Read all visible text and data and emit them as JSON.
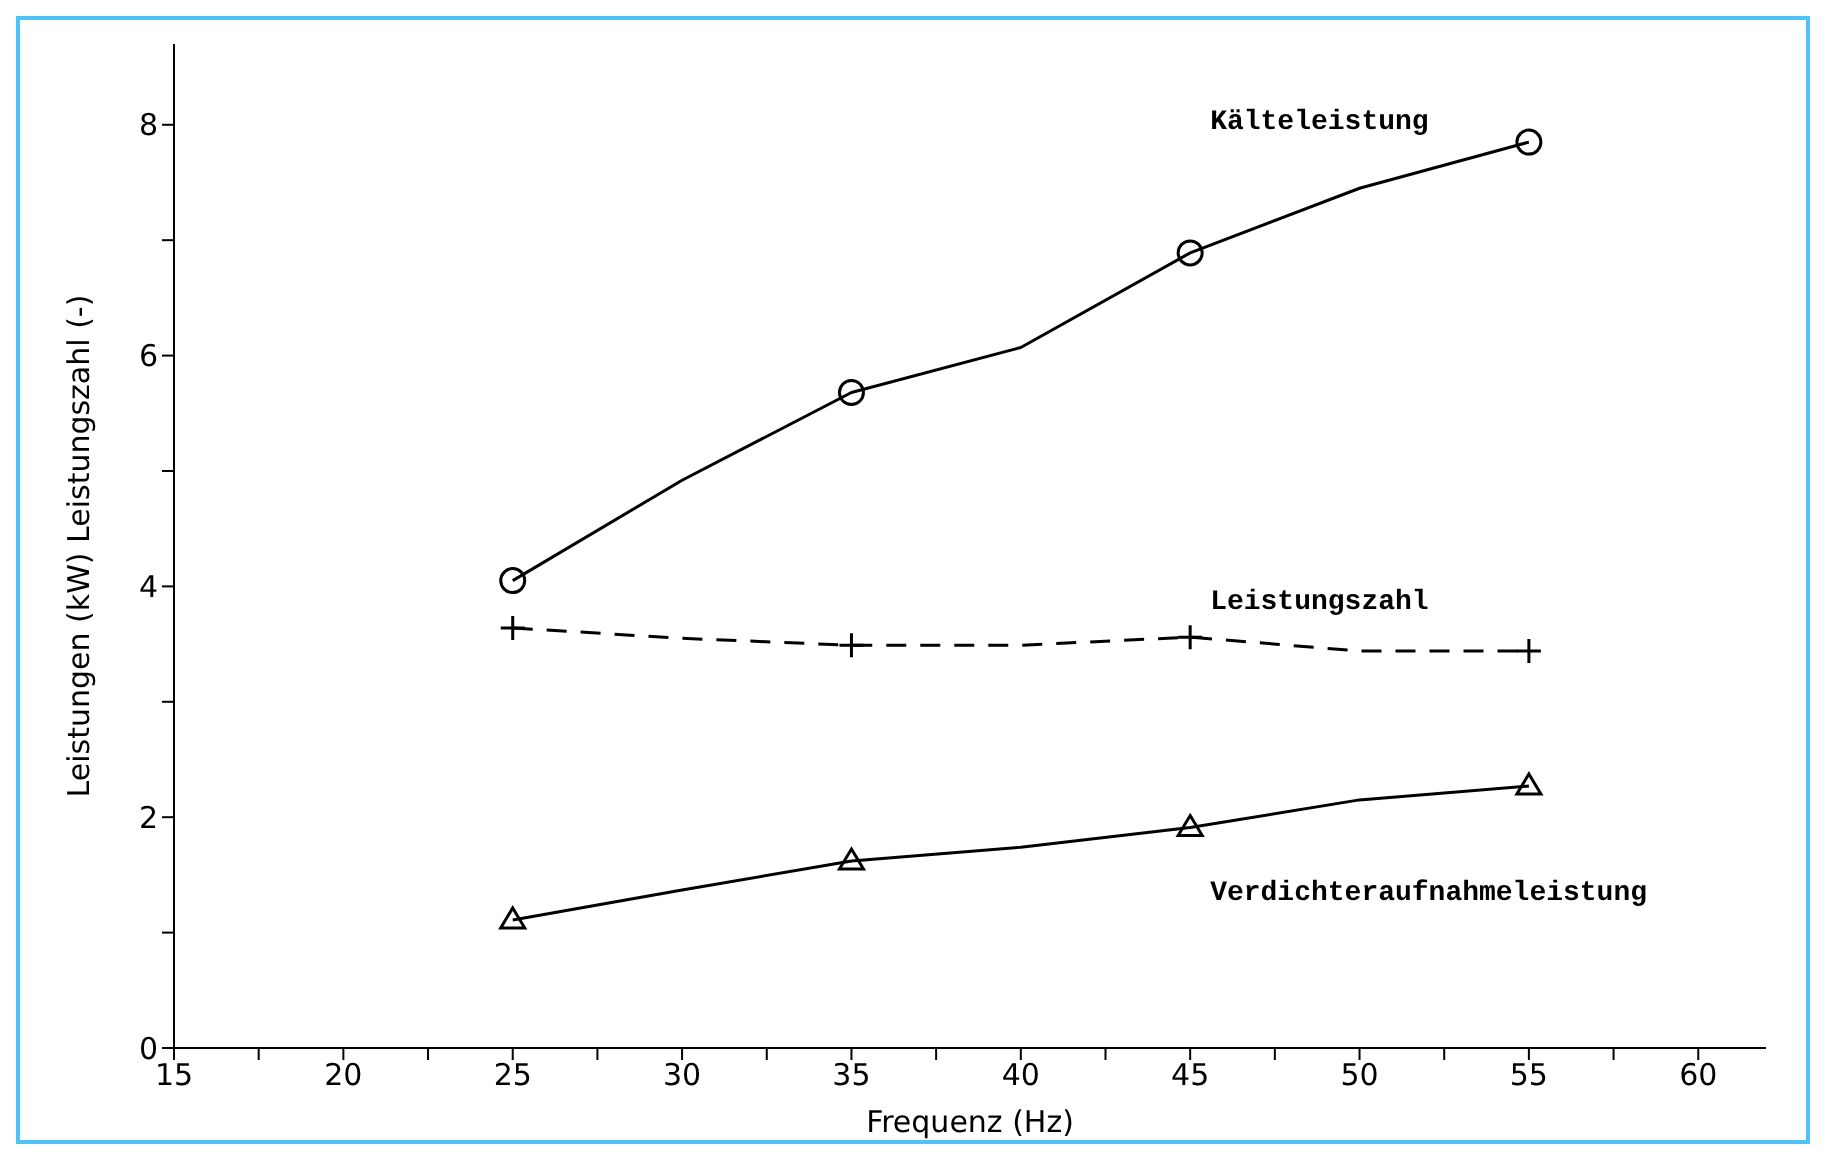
{
  "chart_data": {
    "type": "line",
    "xlabel": "Frequenz (Hz)",
    "ylabel": "Leistungen (kW)    Leistungszahl (-)",
    "x": [
      25,
      30,
      35,
      40,
      45,
      50,
      55
    ],
    "series": [
      {
        "name": "Kälteleistung",
        "color": "#000000",
        "marker": "circle",
        "line_style": "solid",
        "values": [
          4.05,
          4.92,
          5.68,
          6.07,
          6.89,
          7.45,
          7.85
        ]
      },
      {
        "name": "Leistungszahl",
        "color": "#000000",
        "marker": "cross",
        "line_style": "dashed",
        "values": [
          3.64,
          3.55,
          3.49,
          3.49,
          3.56,
          3.44,
          3.44
        ]
      },
      {
        "name": "Verdichteraufnahmeleistung",
        "color": "#000000",
        "marker": "triangle",
        "line_style": "solid",
        "values": [
          1.11,
          1.37,
          1.62,
          1.74,
          1.91,
          2.15,
          2.27
        ]
      }
    ],
    "xlim": [
      15,
      62
    ],
    "xticks": [
      15,
      {
        "value": 17.5,
        "label": null
      },
      20,
      {
        "value": 22.5,
        "label": null
      },
      25,
      {
        "value": 27.5,
        "label": null
      },
      30,
      {
        "value": 32.5,
        "label": null
      },
      35,
      {
        "value": 37.5,
        "label": null
      },
      40,
      {
        "value": 42.5,
        "label": null
      },
      45,
      {
        "value": 47.5,
        "label": null
      },
      50,
      {
        "value": 52.5,
        "label": null
      },
      55,
      {
        "value": 57.5,
        "label": null
      },
      60
    ],
    "ylim": [
      0,
      8.7
    ],
    "yticks": [
      0,
      {
        "value": 1,
        "label": null
      },
      2,
      {
        "value": 3,
        "label": null
      },
      4,
      {
        "value": 5,
        "label": null
      },
      6,
      {
        "value": 7,
        "label": null
      },
      8
    ],
    "grid": false,
    "legend": false
  }
}
